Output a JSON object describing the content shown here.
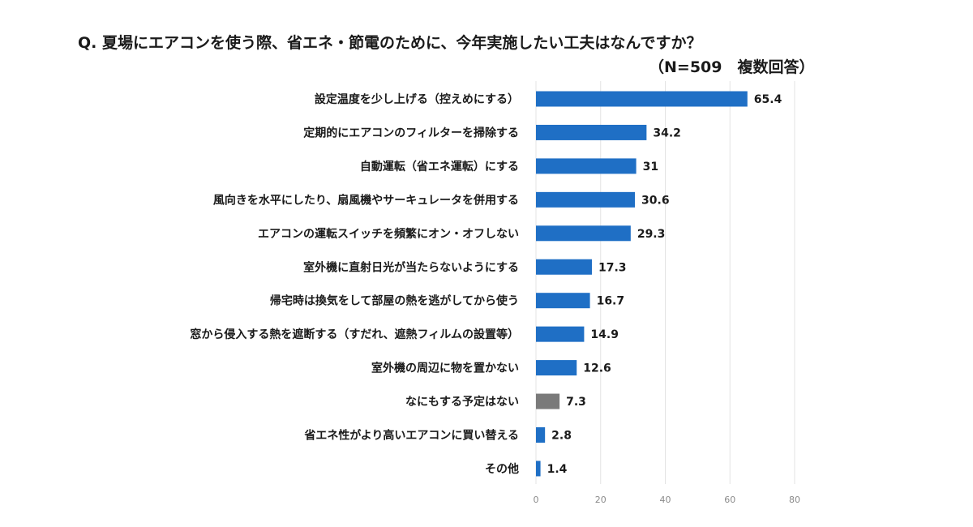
{
  "chart_data": {
    "type": "bar",
    "orientation": "horizontal",
    "title": "Q.  夏場にエアコンを使う際、省エネ・節電のために、今年実施したい工夫はなんですか？",
    "subtitle": "（N=509　複数回答）",
    "categories": [
      "設定温度を少し上げる（控えめにする）",
      "定期的にエアコンのフィルターを掃除する",
      "自動運転（省エネ運転）にする",
      "風向きを水平にしたり、扇風機やサーキュレータを併用する",
      "エアコンの運転スイッチを頻繁にオン・オフしない",
      "室外機に直射日光が当たらないようにする",
      "帰宅時は換気をして部屋の熱を逃がしてから使う",
      "窓から侵入する熱を遮断する（すだれ、遮熱フィルムの設置等）",
      "室外機の周辺に物を置かない",
      "なにもする予定はない",
      "省エネ性がより高いエアコンに買い替える",
      "その他"
    ],
    "values": [
      65.4,
      34.2,
      31,
      30.6,
      29.3,
      17.3,
      16.7,
      14.9,
      12.6,
      7.3,
      2.8,
      1.4
    ],
    "value_labels": [
      "65.4",
      "34.2",
      "31",
      "30.6",
      "29.3",
      "17.3",
      "16.7",
      "14.9",
      "12.6",
      "7.3",
      "2.8",
      "1.4"
    ],
    "bar_colors": [
      "#1f6fc5",
      "#1f6fc5",
      "#1f6fc5",
      "#1f6fc5",
      "#1f6fc5",
      "#1f6fc5",
      "#1f6fc5",
      "#1f6fc5",
      "#1f6fc5",
      "#7a7a7a",
      "#1f6fc5",
      "#1f6fc5"
    ],
    "xlim": [
      0,
      80
    ],
    "xticks": [
      0,
      20,
      40,
      60,
      80
    ],
    "grid": true,
    "gridline_color": "#e3e3e3",
    "legend": "none"
  }
}
